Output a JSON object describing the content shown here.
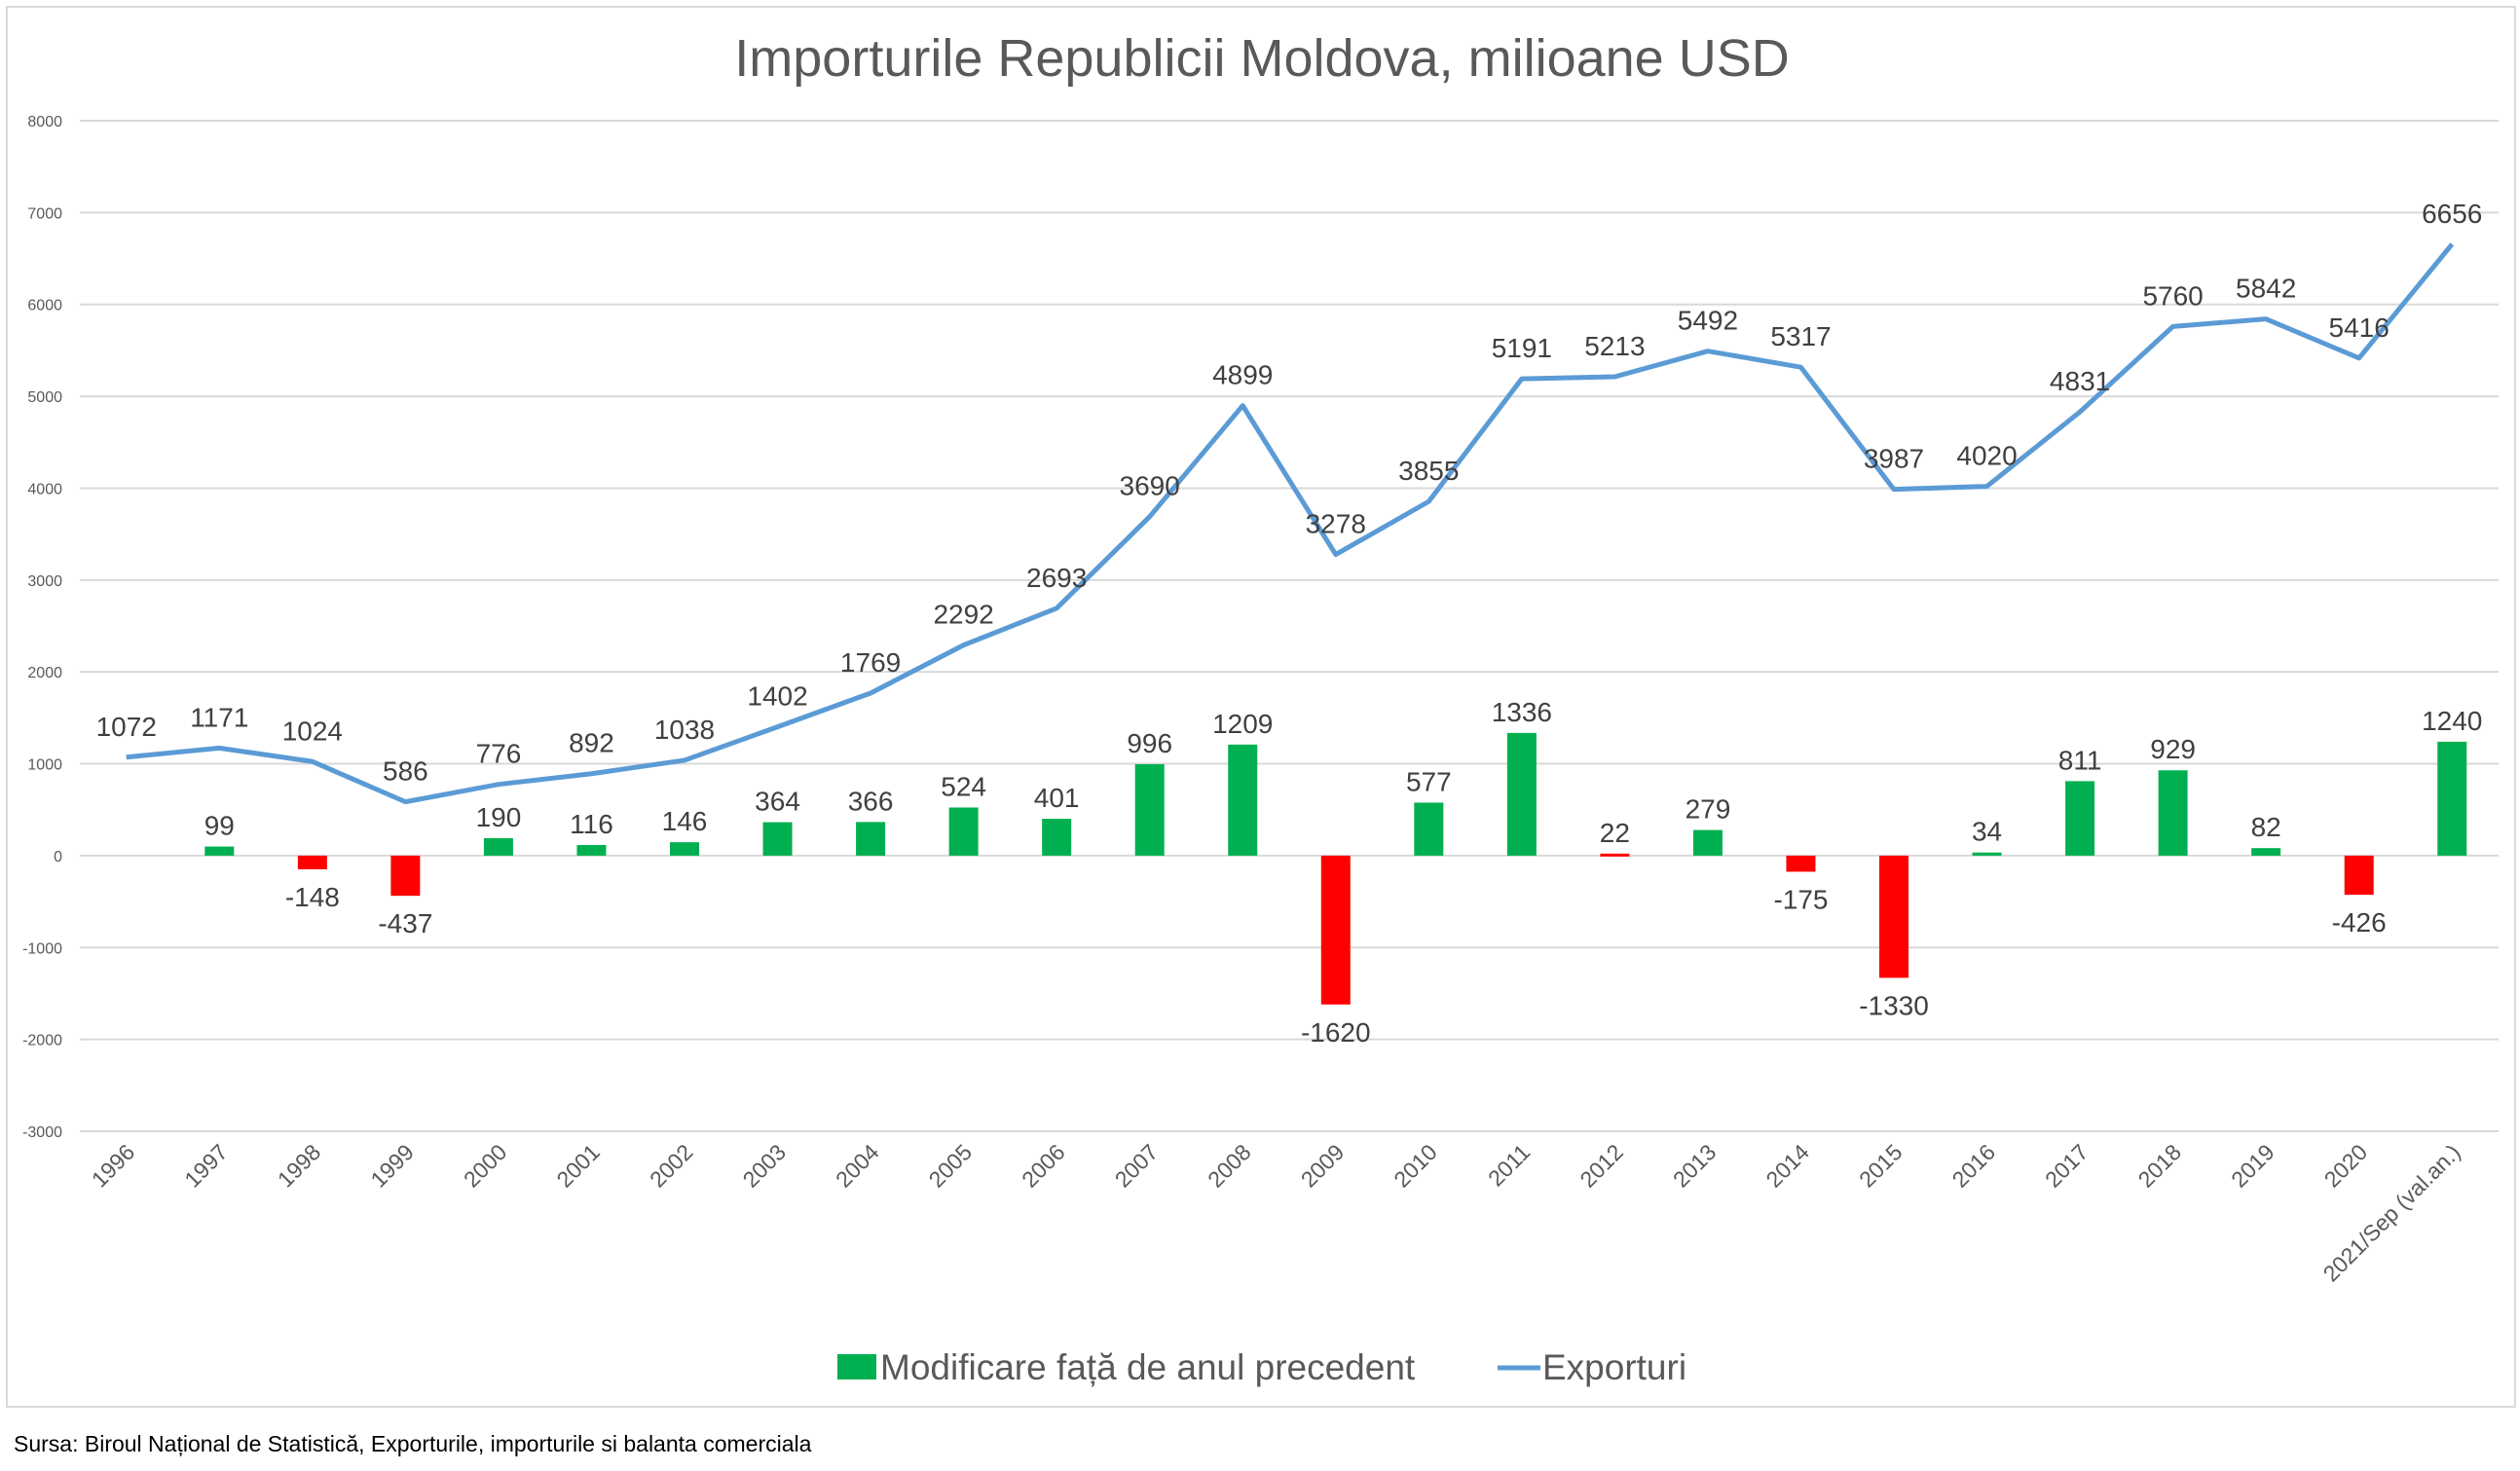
{
  "chart_data": {
    "type": "bar+line",
    "title": "Importurile Republicii Moldova, milioane USD",
    "xlabel": "",
    "ylabel": "",
    "ylim": [
      -3000,
      8000
    ],
    "yticks": [
      8000,
      7000,
      6000,
      5000,
      4000,
      3000,
      2000,
      1000,
      0,
      -1000,
      -2000,
      -3000
    ],
    "grid": true,
    "legend_position": "bottom",
    "categories": [
      "1996",
      "1997",
      "1998",
      "1999",
      "2000",
      "2001",
      "2002",
      "2003",
      "2004",
      "2005",
      "2006",
      "2007",
      "2008",
      "2009",
      "2010",
      "2011",
      "2012",
      "2013",
      "2014",
      "2015",
      "2016",
      "2017",
      "2018",
      "2019",
      "2020",
      "2021/Sep (val.an.)"
    ],
    "series": [
      {
        "name": "Modificare față de anul precedent",
        "type": "bar",
        "values": [
          null,
          99,
          -148,
          -437,
          190,
          116,
          146,
          364,
          366,
          524,
          401,
          996,
          1209,
          -1620,
          577,
          1336,
          22,
          279,
          -175,
          -1330,
          34,
          811,
          929,
          82,
          -426,
          1240
        ],
        "colors": [
          "#00b050",
          "#00b050",
          "#ff0000",
          "#ff0000",
          "#00b050",
          "#00b050",
          "#00b050",
          "#00b050",
          "#00b050",
          "#00b050",
          "#00b050",
          "#00b050",
          "#00b050",
          "#ff0000",
          "#00b050",
          "#00b050",
          "#ff0000",
          "#00b050",
          "#ff0000",
          "#ff0000",
          "#00b050",
          "#00b050",
          "#00b050",
          "#00b050",
          "#ff0000",
          "#00b050"
        ]
      },
      {
        "name": "Exporturi",
        "type": "line",
        "color": "#5b9bd5",
        "values": [
          1072,
          1171,
          1024,
          586,
          776,
          892,
          1038,
          1402,
          1769,
          2292,
          2693,
          3690,
          4899,
          3278,
          3855,
          5191,
          5213,
          5492,
          5317,
          3987,
          4020,
          4831,
          5760,
          5842,
          5416,
          6656
        ]
      }
    ],
    "legend_swatch_color": "#00b050"
  },
  "source": "Sursa: Biroul Național de Statistică, Exporturile, importurile si balanta comerciala"
}
